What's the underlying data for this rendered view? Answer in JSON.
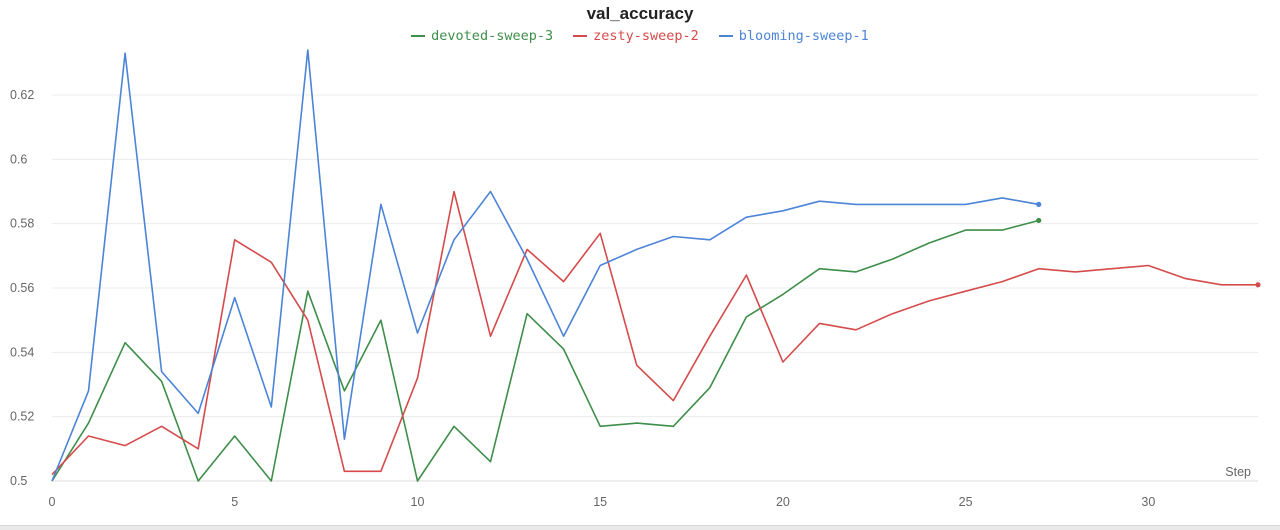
{
  "chart_data": {
    "type": "line",
    "title": "val_accuracy",
    "xlabel": "Step",
    "ylabel": "",
    "xlim": [
      0,
      33
    ],
    "ylim": [
      0.5,
      0.634
    ],
    "x_ticks": [
      0,
      5,
      10,
      15,
      20,
      25,
      30
    ],
    "y_ticks": [
      0.5,
      0.52,
      0.54,
      0.56,
      0.58,
      0.6,
      0.62
    ],
    "grid": "horizontal",
    "legend_position": "top-center",
    "series": [
      {
        "name": "devoted-sweep-3",
        "color": "#3e8e4a",
        "x": [
          0,
          1,
          2,
          3,
          4,
          5,
          6,
          7,
          8,
          9,
          10,
          11,
          12,
          13,
          14,
          15,
          16,
          17,
          18,
          19,
          20,
          21,
          22,
          23,
          24,
          25,
          26,
          27
        ],
        "values": [
          0.5,
          0.518,
          0.543,
          0.531,
          0.5,
          0.514,
          0.5,
          0.559,
          0.528,
          0.55,
          0.5,
          0.517,
          0.506,
          0.552,
          0.541,
          0.517,
          0.518,
          0.517,
          0.529,
          0.551,
          0.558,
          0.566,
          0.565,
          0.569,
          0.574,
          0.578,
          0.578,
          0.581
        ]
      },
      {
        "name": "zesty-sweep-2",
        "color": "#d54b4b",
        "x": [
          0,
          1,
          2,
          3,
          4,
          5,
          6,
          7,
          8,
          9,
          10,
          11,
          12,
          13,
          14,
          15,
          16,
          17,
          18,
          19,
          20,
          21,
          22,
          23,
          24,
          25,
          26,
          27,
          28,
          29,
          30,
          31,
          32,
          33
        ],
        "values": [
          0.502,
          0.514,
          0.511,
          0.517,
          0.51,
          0.575,
          0.568,
          0.55,
          0.503,
          0.503,
          0.532,
          0.59,
          0.545,
          0.572,
          0.562,
          0.577,
          0.536,
          0.525,
          0.545,
          0.564,
          0.537,
          0.549,
          0.547,
          0.552,
          0.556,
          0.559,
          0.562,
          0.566,
          0.565,
          0.566,
          0.567,
          0.563,
          0.561,
          0.561
        ]
      },
      {
        "name": "blooming-sweep-1",
        "color": "#4c84d8",
        "x": [
          0,
          1,
          2,
          3,
          4,
          5,
          6,
          7,
          8,
          9,
          10,
          11,
          12,
          13,
          14,
          15,
          16,
          17,
          18,
          19,
          20,
          21,
          22,
          23,
          24,
          25,
          26,
          27
        ],
        "values": [
          0.5,
          0.528,
          0.633,
          0.534,
          0.521,
          0.557,
          0.523,
          0.634,
          0.513,
          0.586,
          0.546,
          0.575,
          0.59,
          0.569,
          0.545,
          0.567,
          0.572,
          0.576,
          0.575,
          0.582,
          0.584,
          0.587,
          0.586,
          0.586,
          0.586,
          0.586,
          0.588,
          0.586
        ]
      }
    ]
  }
}
